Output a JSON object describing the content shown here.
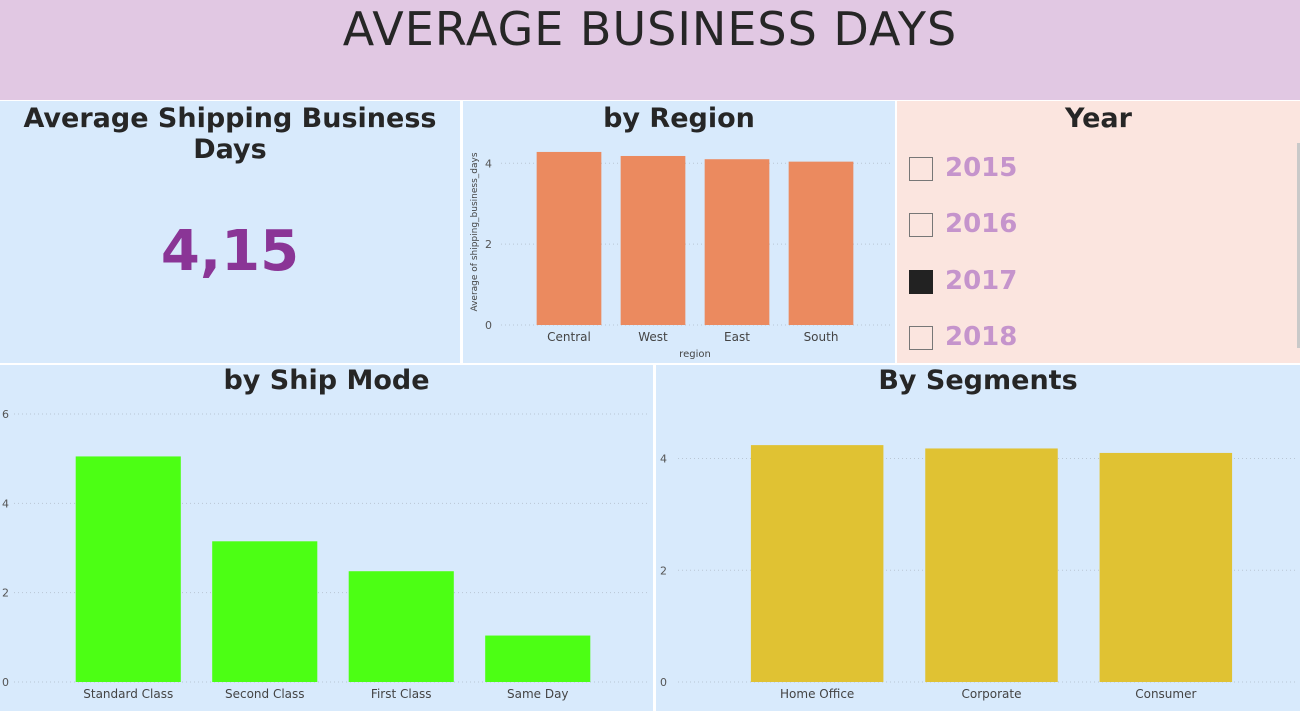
{
  "header": {
    "title": "AVERAGE BUSINESS DAYS"
  },
  "kpi": {
    "title": "Average Shipping Business Days",
    "value": "4,15"
  },
  "year_slicer": {
    "title": "Year",
    "items": [
      {
        "label": "2015",
        "checked": false
      },
      {
        "label": "2016",
        "checked": false
      },
      {
        "label": "2017",
        "checked": true
      },
      {
        "label": "2018",
        "checked": false
      }
    ]
  },
  "region_chart": {
    "title": "by Region",
    "chart_data": {
      "type": "bar",
      "categories": [
        "Central",
        "West",
        "East",
        "South"
      ],
      "values": [
        4.28,
        4.18,
        4.1,
        4.04
      ],
      "ylabel": "Average of shipping_business_days",
      "xlabel": "region",
      "yticks": [
        "0",
        "2",
        "4"
      ],
      "ylim": [
        0,
        4.6
      ],
      "color": "#eb8a5f",
      "grid": true
    }
  },
  "shipmode_chart": {
    "title": "by Ship Mode",
    "chart_data": {
      "type": "bar",
      "categories": [
        "Standard Class",
        "Second Class",
        "First Class",
        "Same Day"
      ],
      "values": [
        5.05,
        3.15,
        2.48,
        1.04
      ],
      "yticks": [
        "0",
        "2",
        "4",
        "6"
      ],
      "ylim": [
        0,
        6
      ],
      "color": "#4cff14",
      "grid": true
    }
  },
  "segment_chart": {
    "title": "By Segments",
    "chart_data": {
      "type": "bar",
      "categories": [
        "Home Office",
        "Corporate",
        "Consumer"
      ],
      "values": [
        4.24,
        4.18,
        4.1
      ],
      "yticks": [
        "0",
        "2",
        "4"
      ],
      "ylim": [
        0,
        4.6
      ],
      "color": "#e0c233",
      "grid": true
    }
  }
}
